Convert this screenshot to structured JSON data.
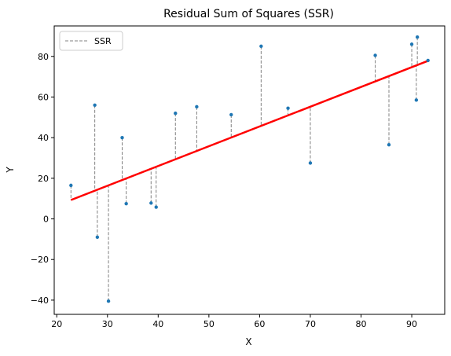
{
  "chart_data": {
    "type": "scatter",
    "title": "Residual Sum of Squares (SSR)",
    "xlabel": "X",
    "ylabel": "Y",
    "xlim": [
      19.5,
      96.5
    ],
    "ylim": [
      -47,
      95
    ],
    "xticks": [
      20,
      30,
      40,
      50,
      60,
      70,
      80,
      90
    ],
    "yticks": [
      -40,
      -20,
      0,
      20,
      40,
      60,
      80
    ],
    "grid": false,
    "legend_placement": "top-left",
    "legend": [
      {
        "label": "SSR",
        "style": "dashed",
        "color": "#808080"
      }
    ],
    "points": [
      {
        "x": 22.8,
        "y": 16.5
      },
      {
        "x": 27.5,
        "y": 56.0
      },
      {
        "x": 28.0,
        "y": -9.0
      },
      {
        "x": 30.2,
        "y": -40.5
      },
      {
        "x": 32.9,
        "y": 40.0
      },
      {
        "x": 33.7,
        "y": 7.5
      },
      {
        "x": 38.6,
        "y": 7.8
      },
      {
        "x": 39.6,
        "y": 5.8
      },
      {
        "x": 43.4,
        "y": 52.0
      },
      {
        "x": 47.6,
        "y": 55.2
      },
      {
        "x": 54.4,
        "y": 51.3
      },
      {
        "x": 60.3,
        "y": 85.0
      },
      {
        "x": 65.6,
        "y": 54.5
      },
      {
        "x": 70.0,
        "y": 27.5
      },
      {
        "x": 82.8,
        "y": 80.5
      },
      {
        "x": 85.5,
        "y": 36.5
      },
      {
        "x": 90.0,
        "y": 86.0
      },
      {
        "x": 90.9,
        "y": 58.5
      },
      {
        "x": 91.1,
        "y": 89.5
      },
      {
        "x": 93.2,
        "y": 78.0
      }
    ],
    "regression_line": {
      "x": [
        22.8,
        93.2
      ],
      "y": [
        9.3,
        77.8
      ],
      "color": "#ff0000"
    },
    "point_color": "#1f77b4",
    "residual_color": "#808080"
  }
}
